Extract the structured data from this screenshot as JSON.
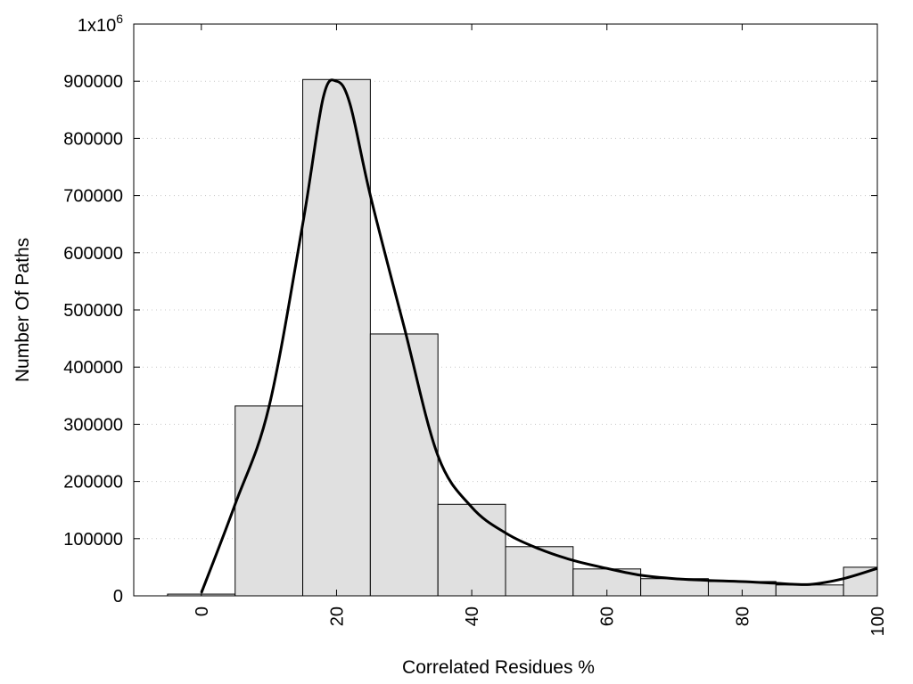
{
  "chart_data": {
    "type": "bar",
    "xlabel": "Correlated Residues %",
    "ylabel": "Number Of Paths",
    "xlim": [
      -10,
      100
    ],
    "ylim": [
      0,
      1000000
    ],
    "x_ticks": [
      0,
      20,
      40,
      60,
      80,
      100
    ],
    "y_ticks": [
      0,
      100000,
      200000,
      300000,
      400000,
      500000,
      600000,
      700000,
      800000,
      900000
    ],
    "y_tick_labels": [
      "0",
      "100000",
      "200000",
      "300000",
      "400000",
      "500000",
      "600000",
      "700000",
      "800000",
      "900000"
    ],
    "y_top_label": {
      "base": "1x10",
      "exponent": "6"
    },
    "bin_width": 10,
    "bins": [
      {
        "center": 0,
        "value": 3000
      },
      {
        "center": 10,
        "value": 332000
      },
      {
        "center": 20,
        "value": 903000
      },
      {
        "center": 30,
        "value": 458000
      },
      {
        "center": 40,
        "value": 160000
      },
      {
        "center": 50,
        "value": 86000
      },
      {
        "center": 60,
        "value": 47000
      },
      {
        "center": 70,
        "value": 30000
      },
      {
        "center": 80,
        "value": 25000
      },
      {
        "center": 90,
        "value": 19000
      },
      {
        "center": 100,
        "value": 50000
      }
    ],
    "curve": {
      "x": [
        0,
        5,
        10,
        15,
        18,
        20,
        22,
        25,
        30,
        35,
        40,
        45,
        50,
        55,
        60,
        65,
        70,
        75,
        80,
        85,
        90,
        95,
        100
      ],
      "y": [
        5000,
        160000,
        330000,
        650000,
        870000,
        900000,
        860000,
        700000,
        470000,
        245000,
        155000,
        110000,
        82000,
        62000,
        48000,
        36000,
        30000,
        27000,
        25000,
        22000,
        20000,
        30000,
        48000
      ]
    },
    "bar_color": "#e0e0e0",
    "curve_color": "#000000",
    "grid": "horizontal dotted",
    "legend": "none"
  }
}
